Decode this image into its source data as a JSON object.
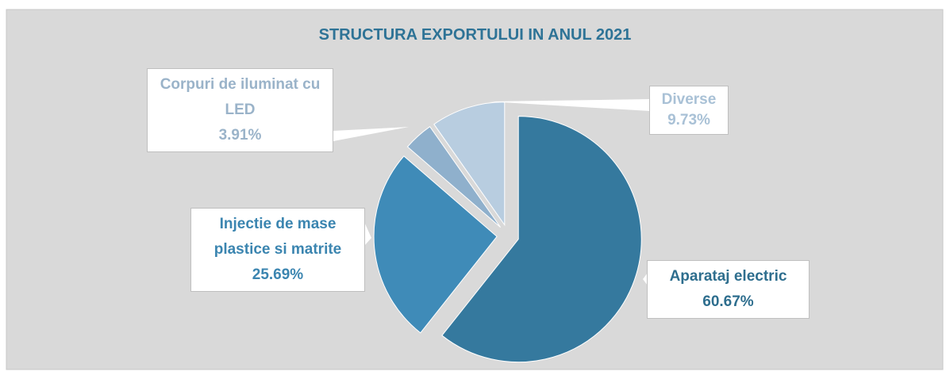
{
  "chart_data": {
    "type": "pie",
    "title": "STRUCTURA EXPORTULUI IN ANUL 2021",
    "categories": [
      "Aparataj electric",
      "Injectie de mase plastice si matrite",
      "Corpuri de iluminat cu LED",
      "Diverse"
    ],
    "values": [
      60.67,
      25.69,
      3.91,
      9.73
    ],
    "value_labels": [
      "60.67%",
      "25.69%",
      "3.91%",
      "9.73%"
    ],
    "colors": [
      "#35799e",
      "#3f8bb8",
      "#8fb0cc",
      "#b8cde0"
    ]
  }
}
